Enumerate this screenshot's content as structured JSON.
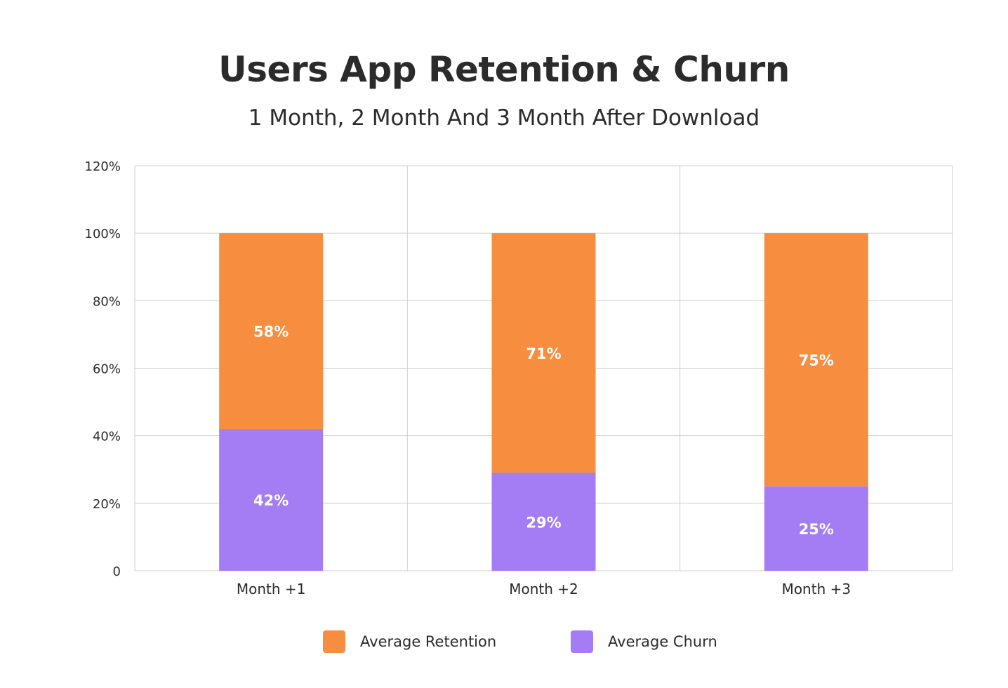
{
  "header": {
    "title": "Users App Retention & Churn",
    "subtitle": "1 Month, 2 Month And 3 Month After Download"
  },
  "colors": {
    "retention": "#F78D3F",
    "churn": "#A47CF4",
    "grid": "#cfcfcf",
    "text": "#2b2b2b",
    "bar_label": "#ffffff"
  },
  "legend": {
    "placement": "bottom-center",
    "items": [
      {
        "label": "Average Retention",
        "color": "#F78D3F"
      },
      {
        "label": "Average Churn",
        "color": "#A47CF4"
      }
    ]
  },
  "chart_data": {
    "type": "bar",
    "stacked": true,
    "title": "Users App Retention & Churn",
    "subtitle": "1 Month, 2 Month And 3 Month After Download",
    "categories": [
      "Month +1",
      "Month +2",
      "Month +3"
    ],
    "series": [
      {
        "name": "Average Churn",
        "values": [
          42,
          29,
          25
        ],
        "labels": [
          "42%",
          "29%",
          "25%"
        ],
        "color": "#A47CF4"
      },
      {
        "name": "Average Retention",
        "values": [
          58,
          71,
          75
        ],
        "labels": [
          "58%",
          "71%",
          "75%"
        ],
        "color": "#F78D3F"
      }
    ],
    "ylim": [
      0,
      120
    ],
    "yticks": [
      0,
      20,
      40,
      60,
      80,
      100,
      120
    ],
    "ytick_labels": [
      "0",
      "20%",
      "40%",
      "60%",
      "80%",
      "100%",
      "120%"
    ],
    "xlabel": "",
    "ylabel": "",
    "grid": true
  }
}
